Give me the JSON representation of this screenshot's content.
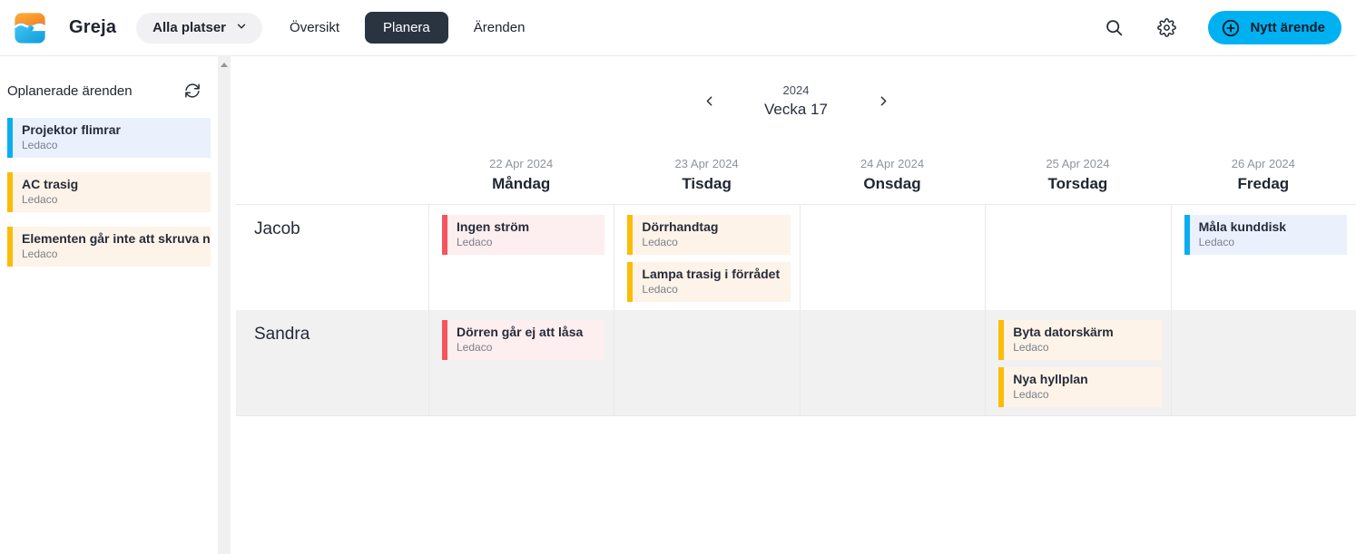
{
  "header": {
    "brand": "Greja",
    "location_selector": "Alla platser",
    "nav": [
      {
        "key": "oversikt",
        "label": "Översikt",
        "active": false
      },
      {
        "key": "planera",
        "label": "Planera",
        "active": true
      },
      {
        "key": "arenden",
        "label": "Ärenden",
        "active": false
      }
    ],
    "icons": [
      "search-icon",
      "gear-icon",
      "plus-circle-icon"
    ],
    "new_ticket_button": "Nytt ärende"
  },
  "sidebar": {
    "title": "Oplanerade ärenden",
    "refresh_icon": "refresh-icon",
    "cards": [
      {
        "title": "Projektor flimrar",
        "subtitle": "Ledaco",
        "color": "blue"
      },
      {
        "title": "AC trasig",
        "subtitle": "Ledaco",
        "color": "yellow"
      },
      {
        "title": "Elementen går inte att skruva n...",
        "subtitle": "Ledaco",
        "color": "yellow"
      }
    ]
  },
  "planner": {
    "year": "2024",
    "week_label": "Vecka 17",
    "days": [
      {
        "date": "22 Apr 2024",
        "name": "Måndag"
      },
      {
        "date": "23 Apr 2024",
        "name": "Tisdag"
      },
      {
        "date": "24 Apr 2024",
        "name": "Onsdag"
      },
      {
        "date": "25 Apr 2024",
        "name": "Torsdag"
      },
      {
        "date": "26 Apr 2024",
        "name": "Fredag"
      }
    ],
    "rows": [
      {
        "person": "Jacob",
        "cells": [
          [
            {
              "title": "Ingen ström",
              "subtitle": "Ledaco",
              "color": "red"
            }
          ],
          [
            {
              "title": "Dörrhandtag",
              "subtitle": "Ledaco",
              "color": "yellow"
            },
            {
              "title": "Lampa trasig i förrådet",
              "subtitle": "Ledaco",
              "color": "yellow"
            }
          ],
          [],
          [],
          [
            {
              "title": "Måla kunddisk",
              "subtitle": "Ledaco",
              "color": "blue"
            }
          ]
        ]
      },
      {
        "person": "Sandra",
        "cells": [
          [
            {
              "title": "Dörren går ej att låsa",
              "subtitle": "Ledaco",
              "color": "red"
            }
          ],
          [],
          [],
          [
            {
              "title": "Byta datorskärm",
              "subtitle": "Ledaco",
              "color": "yellow"
            },
            {
              "title": "Nya hyllplan",
              "subtitle": "Ledaco",
              "color": "yellow"
            }
          ],
          []
        ]
      }
    ]
  },
  "colors": {
    "accent": "#00B1F2",
    "nav_active_bg": "#2A3441",
    "blue": {
      "bar": "#0AAEEF",
      "bg": "#EAF1FC"
    },
    "yellow": {
      "bar": "#FBBC05",
      "bg": "#FDF3E8"
    },
    "red": {
      "bar": "#F4555E",
      "bg": "#FDEEF0"
    }
  }
}
